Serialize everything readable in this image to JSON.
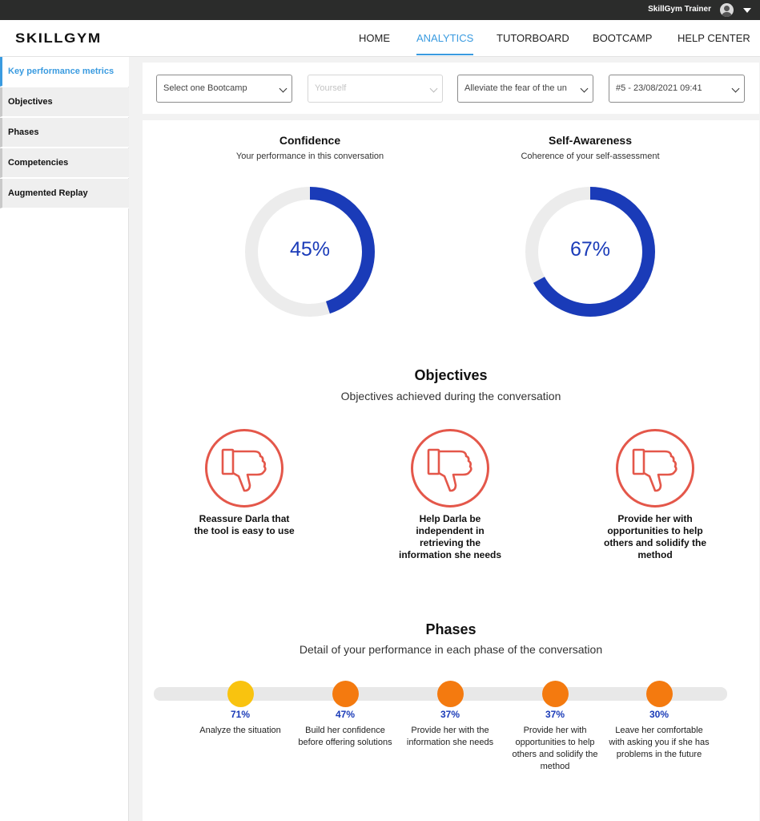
{
  "topbar": {
    "user_name": "SkillGym Trainer"
  },
  "header": {
    "logo": "SKILLGYM",
    "nav": [
      "HOME",
      "ANALYTICS",
      "TUTORBOARD",
      "BOOTCAMP",
      "HELP CENTER"
    ],
    "active_nav": "ANALYTICS"
  },
  "sidebar": {
    "items": [
      "Key performance metrics",
      "Objectives",
      "Phases",
      "Competencies",
      "Augmented Replay"
    ],
    "active_item": "Key performance metrics"
  },
  "filters": {
    "bootcamp": "Select one Bootcamp",
    "person": "Yourself",
    "scenario": "Alleviate the fear of the un",
    "session": "#5 - 23/08/2021 09:41"
  },
  "metrics": {
    "confidence": {
      "title": "Confidence",
      "subtitle": "Your performance in this conversation",
      "value": 45,
      "label": "45%"
    },
    "self_awareness": {
      "title": "Self-Awareness",
      "subtitle": "Coherence of your self-assessment",
      "value": 67,
      "label": "67%"
    }
  },
  "objectives": {
    "title": "Objectives",
    "subtitle": "Objectives achieved during the conversation",
    "items": [
      {
        "text": "Reassure Darla that the tool is easy to use",
        "icon": "thumbs-down-icon",
        "achieved": false
      },
      {
        "text": "Help Darla be independent in retrieving the information she needs",
        "icon": "thumbs-down-icon",
        "achieved": false
      },
      {
        "text": "Provide her with opportunities to help others and solidify the method",
        "icon": "thumbs-down-icon",
        "achieved": false
      }
    ]
  },
  "phases": {
    "title": "Phases",
    "subtitle": "Detail of your performance in each phase of the conversation",
    "items": [
      {
        "pct": "71%",
        "label": "Analyze the situation",
        "color": "#f9c30f"
      },
      {
        "pct": "47%",
        "label": "Build her confidence before offering solutions",
        "color": "#f47a0f"
      },
      {
        "pct": "37%",
        "label": "Provide her with the information she needs",
        "color": "#f47a0f"
      },
      {
        "pct": "37%",
        "label": "Provide her with opportunities to help others and solidify the method",
        "color": "#f47a0f"
      },
      {
        "pct": "30%",
        "label": "Leave her comfortable with asking you if she has problems in the future",
        "color": "#f47a0f"
      }
    ]
  },
  "colors": {
    "accent": "#3a9be0",
    "donut_fill": "#1a3bb8",
    "donut_track": "#ececec",
    "objective_fail": "#e4574a"
  }
}
